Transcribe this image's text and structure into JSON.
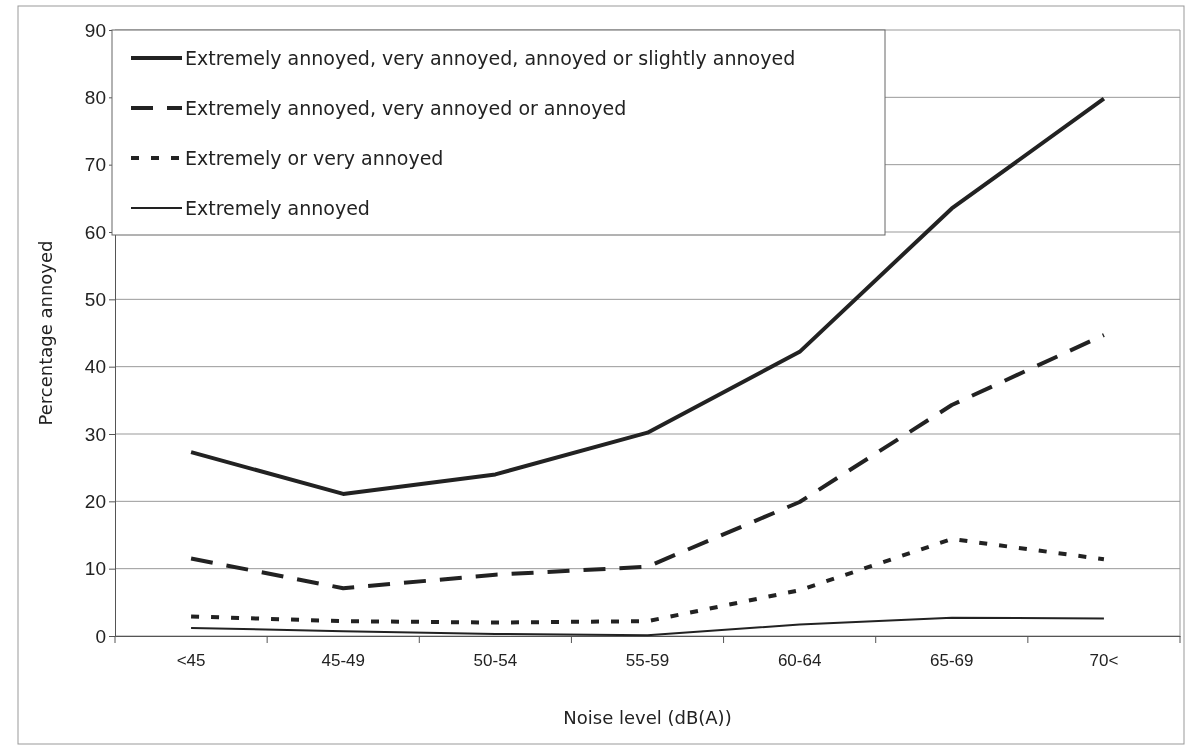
{
  "chart_data": {
    "type": "line",
    "xlabel": "Noise level (dB(A))",
    "ylabel": "Percentage annoyed",
    "categories": [
      "<45",
      "45-49",
      "50-54",
      "55-59",
      "60-64",
      "65-69",
      "70<"
    ],
    "ylim": [
      0,
      90
    ],
    "yticks": [
      0,
      10,
      20,
      30,
      40,
      50,
      60,
      70,
      80,
      90
    ],
    "grid": "y",
    "legend": "top left",
    "series": [
      {
        "name": "Extremely annoyed, very annoyed, annoyed or slightly annoyed",
        "color": "#222222",
        "line_style": "solid",
        "values": [
          27.3,
          21.1,
          24.0,
          30.2,
          42.2,
          63.5,
          79.8
        ]
      },
      {
        "name": "Extremely annoyed, very annoyed or annoyed",
        "color": "#222222",
        "line_style": "dashed",
        "values": [
          11.5,
          7.1,
          9.1,
          10.3,
          19.9,
          34.3,
          44.7
        ]
      },
      {
        "name": "Extremely or very annoyed",
        "color": "#222222",
        "line_style": "dotted",
        "values": [
          2.9,
          2.2,
          2.0,
          2.2,
          6.8,
          14.4,
          11.4
        ]
      },
      {
        "name": "Extremely annoyed",
        "color": "#222222",
        "line_style": "solid",
        "values": [
          1.2,
          0.7,
          0.3,
          0.1,
          1.7,
          2.7,
          2.6
        ]
      }
    ]
  }
}
